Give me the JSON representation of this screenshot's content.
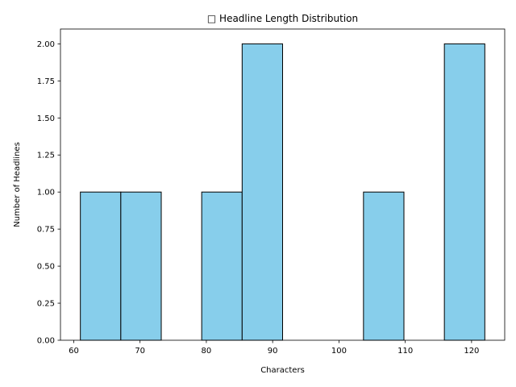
{
  "chart_data": {
    "type": "bar",
    "subtype": "histogram",
    "title": "□ Headline Length Distribution",
    "xlabel": "Characters",
    "ylabel": "Number of Headlines",
    "xlim": [
      58,
      125
    ],
    "ylim": [
      0,
      2.1
    ],
    "x_ticks": [
      60,
      70,
      80,
      90,
      100,
      110,
      120
    ],
    "y_ticks": [
      "0.00",
      "0.25",
      "0.50",
      "0.75",
      "1.00",
      "1.25",
      "1.50",
      "1.75",
      "2.00"
    ],
    "bin_edges": [
      61,
      67.1,
      73.2,
      79.3,
      85.4,
      91.5,
      97.6,
      103.7,
      109.8,
      115.9,
      122
    ],
    "values": [
      1,
      1,
      0,
      1,
      2,
      0,
      0,
      1,
      0,
      2
    ],
    "grid": false,
    "bar_color": "#87ceeb",
    "edge_color": "#000000"
  }
}
